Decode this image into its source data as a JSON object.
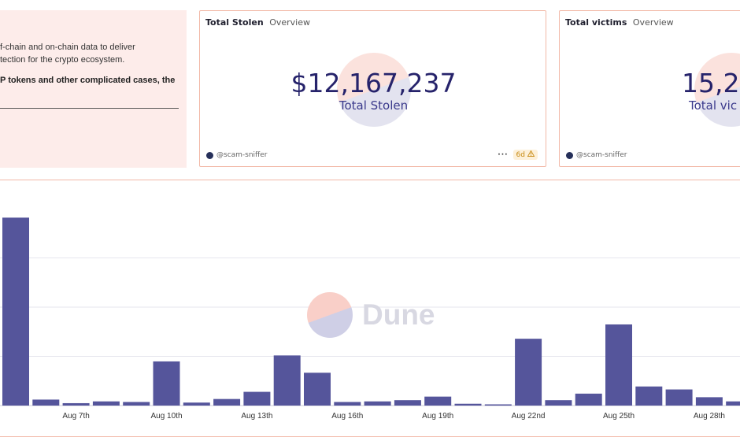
{
  "text_panel": {
    "line1": "f-chain and on-chain data to deliver",
    "line2": "tection for the crypto ecosystem.",
    "line3": "P tokens and other complicated cases, the"
  },
  "cards": [
    {
      "title": "Total Stolen",
      "tab": "Overview",
      "value": "$12,167,237",
      "label": "Total Stolen",
      "author": "@scam-sniffer",
      "age": "6d",
      "warning_icon": "warning-icon",
      "more_icon": "more-icon"
    },
    {
      "title": "Total victims",
      "tab": "Overview",
      "value": "15,2",
      "label": "Total vic",
      "author": "@scam-sniffer"
    }
  ],
  "watermark": {
    "text": "Dune"
  },
  "colors": {
    "bar": "#55559b",
    "card_border": "#f2b9a8",
    "panel_bg": "#fdecea",
    "value_text": "#26236b",
    "grid": "#e6e6ee"
  },
  "chart_data": {
    "type": "bar",
    "categories": [
      "Aug 5th",
      "Aug 6th",
      "Aug 7th",
      "Aug 8th",
      "Aug 9th",
      "Aug 10th",
      "Aug 11th",
      "Aug 12th",
      "Aug 13th",
      "Aug 14th",
      "Aug 15th",
      "Aug 16th",
      "Aug 17th",
      "Aug 18th",
      "Aug 19th",
      "Aug 20th",
      "Aug 21st",
      "Aug 22nd",
      "Aug 23rd",
      "Aug 24th",
      "Aug 25th",
      "Aug 26th",
      "Aug 27th",
      "Aug 28th",
      "Aug 29th"
    ],
    "tick_labels": [
      "Aug 7th",
      "Aug 10th",
      "Aug 13th",
      "Aug 16th",
      "Aug 19th",
      "Aug 22nd",
      "Aug 25th",
      "Aug 28th"
    ],
    "values": [
      3.15,
      0.1,
      0.04,
      0.07,
      0.06,
      0.74,
      0.05,
      0.11,
      0.23,
      0.84,
      0.55,
      0.06,
      0.07,
      0.09,
      0.15,
      0.03,
      0.02,
      1.12,
      0.09,
      0.2,
      1.36,
      0.32,
      0.27,
      0.14,
      0.07
    ],
    "ylim": [
      0,
      3.3
    ],
    "grid": true,
    "xlabel": "",
    "ylabel": ""
  }
}
